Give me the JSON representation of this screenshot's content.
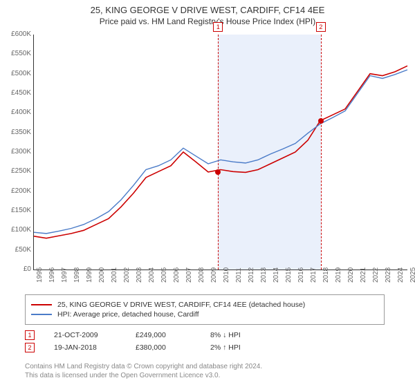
{
  "title_line1": "25, KING GEORGE V DRIVE WEST, CARDIFF, CF14 4EE",
  "title_line2": "Price paid vs. HM Land Registry's House Price Index (HPI)",
  "chart": {
    "type": "line",
    "xlim": [
      1995,
      2025
    ],
    "ylim": [
      0,
      600000
    ],
    "ytick_step": 50000,
    "ytick_labels": [
      "£0",
      "£50K",
      "£100K",
      "£150K",
      "£200K",
      "£250K",
      "£300K",
      "£350K",
      "£400K",
      "£450K",
      "£500K",
      "£550K",
      "£600K"
    ],
    "x_years": [
      1995,
      1996,
      1997,
      1998,
      1999,
      2000,
      2001,
      2002,
      2003,
      2004,
      2005,
      2006,
      2007,
      2008,
      2009,
      2010,
      2011,
      2012,
      2013,
      2014,
      2015,
      2016,
      2017,
      2018,
      2019,
      2020,
      2021,
      2022,
      2023,
      2024,
      2025
    ],
    "shaded_region": {
      "x_start": 2009.8,
      "x_end": 2018.05,
      "color": "#eaf0fb"
    },
    "marker_lines": [
      {
        "x": 2009.8,
        "label": "1",
        "border_color": "#cc0000"
      },
      {
        "x": 2018.05,
        "label": "2",
        "border_color": "#cc0000"
      }
    ],
    "series": [
      {
        "name": "red",
        "color": "#cc0000",
        "width": 1.6,
        "points": [
          [
            1995,
            85000
          ],
          [
            1996,
            80000
          ],
          [
            1997,
            86000
          ],
          [
            1998,
            92000
          ],
          [
            1999,
            100000
          ],
          [
            2000,
            115000
          ],
          [
            2001,
            130000
          ],
          [
            2002,
            160000
          ],
          [
            2003,
            195000
          ],
          [
            2004,
            235000
          ],
          [
            2005,
            250000
          ],
          [
            2006,
            265000
          ],
          [
            2007,
            300000
          ],
          [
            2008,
            275000
          ],
          [
            2009,
            249000
          ],
          [
            2010,
            255000
          ],
          [
            2011,
            250000
          ],
          [
            2012,
            248000
          ],
          [
            2013,
            255000
          ],
          [
            2014,
            270000
          ],
          [
            2015,
            285000
          ],
          [
            2016,
            300000
          ],
          [
            2017,
            330000
          ],
          [
            2018,
            380000
          ],
          [
            2019,
            395000
          ],
          [
            2020,
            410000
          ],
          [
            2021,
            455000
          ],
          [
            2022,
            500000
          ],
          [
            2023,
            495000
          ],
          [
            2024,
            505000
          ],
          [
            2025,
            520000
          ]
        ]
      },
      {
        "name": "blue",
        "color": "#4a7bc8",
        "width": 1.4,
        "points": [
          [
            1995,
            95000
          ],
          [
            1996,
            92000
          ],
          [
            1997,
            98000
          ],
          [
            1998,
            105000
          ],
          [
            1999,
            115000
          ],
          [
            2000,
            130000
          ],
          [
            2001,
            148000
          ],
          [
            2002,
            178000
          ],
          [
            2003,
            215000
          ],
          [
            2004,
            255000
          ],
          [
            2005,
            265000
          ],
          [
            2006,
            280000
          ],
          [
            2007,
            310000
          ],
          [
            2008,
            290000
          ],
          [
            2009,
            270000
          ],
          [
            2010,
            280000
          ],
          [
            2011,
            275000
          ],
          [
            2012,
            272000
          ],
          [
            2013,
            280000
          ],
          [
            2014,
            295000
          ],
          [
            2015,
            308000
          ],
          [
            2016,
            322000
          ],
          [
            2017,
            348000
          ],
          [
            2018,
            372000
          ],
          [
            2019,
            388000
          ],
          [
            2020,
            405000
          ],
          [
            2021,
            450000
          ],
          [
            2022,
            495000
          ],
          [
            2023,
            488000
          ],
          [
            2024,
            498000
          ],
          [
            2025,
            510000
          ]
        ]
      }
    ],
    "transaction_points": [
      {
        "x": 2009.8,
        "y": 249000,
        "color": "#cc0000"
      },
      {
        "x": 2018.05,
        "y": 380000,
        "color": "#cc0000"
      }
    ]
  },
  "legend": {
    "items": [
      {
        "color": "#cc0000",
        "label": "25, KING GEORGE V DRIVE WEST, CARDIFF, CF14 4EE (detached house)"
      },
      {
        "color": "#4a7bc8",
        "label": "HPI: Average price, detached house, Cardiff"
      }
    ]
  },
  "transactions": [
    {
      "num": "1",
      "date": "21-OCT-2009",
      "price": "£249,000",
      "delta": "8% ↓ HPI"
    },
    {
      "num": "2",
      "date": "19-JAN-2018",
      "price": "£380,000",
      "delta": "2% ↑ HPI"
    }
  ],
  "footer_line1": "Contains HM Land Registry data © Crown copyright and database right 2024.",
  "footer_line2": "This data is licensed under the Open Government Licence v3.0."
}
